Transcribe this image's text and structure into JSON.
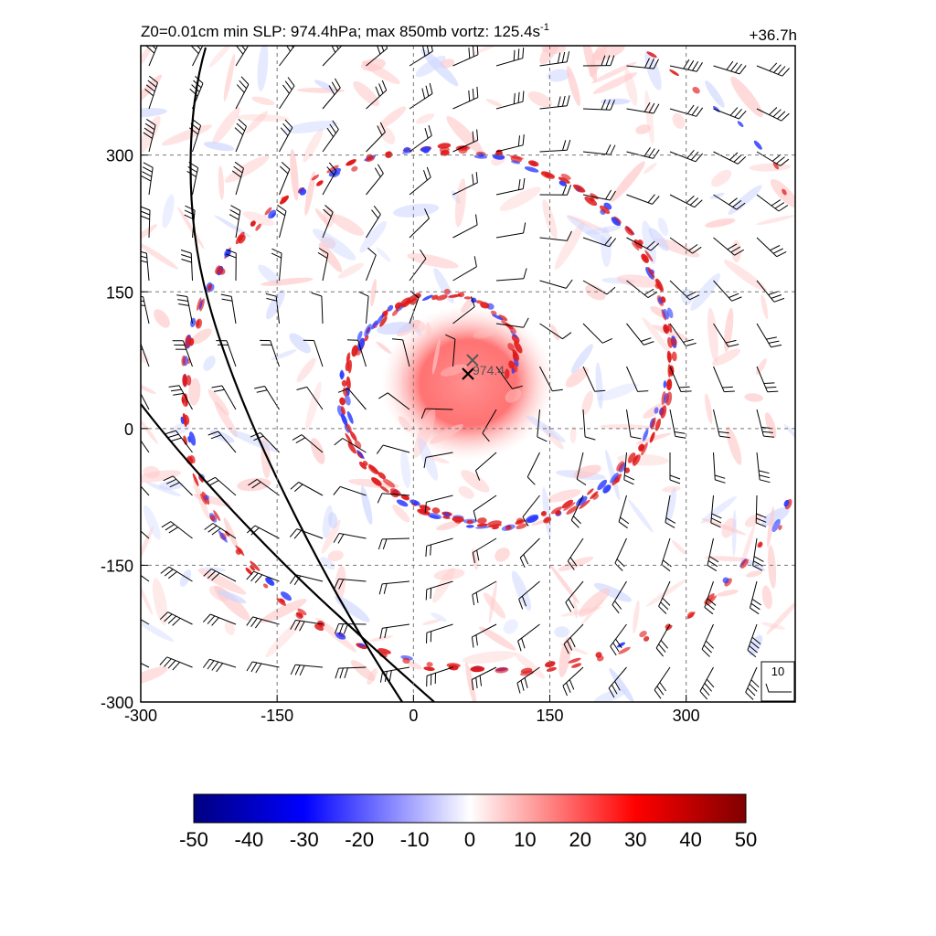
{
  "chart_data": {
    "type": "heatmap",
    "title": "Z0=0.01cm  min SLP: 974.4hPa; max 850mb vortz: 125.4s",
    "title_superscript": "-1",
    "time_label": "+36.7h",
    "x_ticks": [
      "-300",
      "-150",
      "0",
      "150",
      "300"
    ],
    "y_ticks": [
      "300",
      "150",
      "0",
      "-150",
      "-300"
    ],
    "x_range": [
      -300,
      420
    ],
    "y_range": [
      -300,
      420
    ],
    "grid": true,
    "center_marker": {
      "x": 60,
      "y": 60,
      "label": "974.4"
    },
    "center_marker_2": {
      "x": 65,
      "y": 75
    },
    "wind_reference": {
      "label": "10"
    },
    "colorbar": {
      "ticks": [
        "-50",
        "-40",
        "-30",
        "-20",
        "-10",
        "0",
        "10",
        "20",
        "30",
        "40",
        "50"
      ],
      "range": [
        -50,
        50
      ],
      "colors": [
        "#000080",
        "#0000ff",
        "#ffffff",
        "#ff0000",
        "#800000"
      ]
    }
  }
}
